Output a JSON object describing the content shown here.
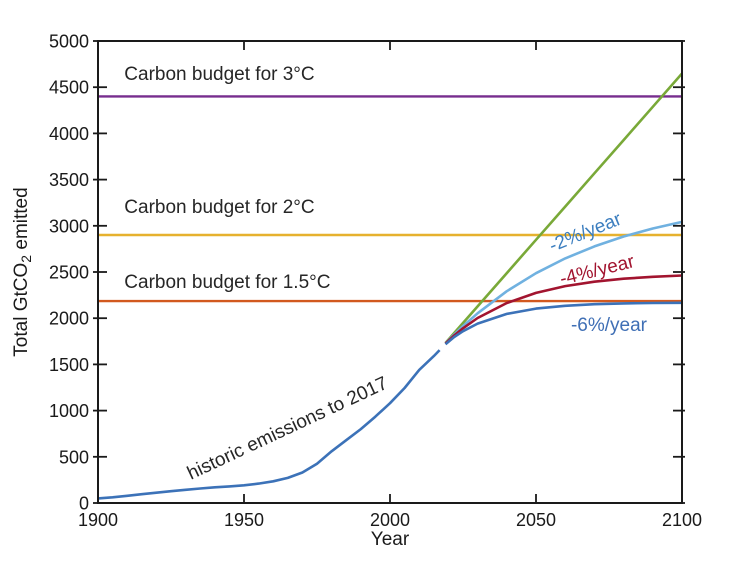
{
  "chart_data": {
    "type": "line",
    "title": "",
    "xlabel": "Year",
    "ylabel": {
      "pre": "Total GtCO",
      "sub": "2",
      "post": " emitted"
    },
    "xlim": [
      1900,
      2100
    ],
    "ylim": [
      0,
      5000
    ],
    "xticks": [
      1900,
      1950,
      2000,
      2050,
      2100
    ],
    "yticks": [
      0,
      500,
      1000,
      1500,
      2000,
      2500,
      3000,
      3500,
      4000,
      4500,
      5000
    ],
    "grid": false,
    "legend_position": "none",
    "frame_color": "#1a1a1a",
    "budget_lines": [
      {
        "name": "carbon-budget-3c",
        "value": 4400,
        "color": "#772D8E"
      },
      {
        "name": "carbon-budget-2c",
        "value": 2900,
        "color": "#E6B12E"
      },
      {
        "name": "carbon-budget-1-5c",
        "value": 2185,
        "color": "#D2591F"
      }
    ],
    "series": [
      {
        "name": "constant-emissions",
        "color": "#79A938",
        "points": [
          [
            2019,
            1732
          ],
          [
            2022,
            1840
          ],
          [
            2030,
            2128
          ],
          [
            2040,
            2488
          ],
          [
            2050,
            2848
          ],
          [
            2060,
            3208
          ],
          [
            2070,
            3568
          ],
          [
            2080,
            3928
          ],
          [
            2090,
            4288
          ],
          [
            2100,
            4648
          ]
        ]
      },
      {
        "name": "minus-2-percent-per-year",
        "color": "#70B1E0",
        "points": [
          [
            2019,
            1727
          ],
          [
            2022,
            1823
          ],
          [
            2025,
            1914
          ],
          [
            2030,
            2053
          ],
          [
            2040,
            2292
          ],
          [
            2050,
            2487
          ],
          [
            2060,
            2647
          ],
          [
            2070,
            2777
          ],
          [
            2080,
            2884
          ],
          [
            2090,
            2971
          ],
          [
            2100,
            3042
          ]
        ]
      },
      {
        "name": "minus-4-percent-per-year",
        "color": "#A2142F",
        "points": [
          [
            2019,
            1725
          ],
          [
            2022,
            1813
          ],
          [
            2025,
            1891
          ],
          [
            2030,
            2002
          ],
          [
            2040,
            2165
          ],
          [
            2050,
            2274
          ],
          [
            2060,
            2347
          ],
          [
            2070,
            2395
          ],
          [
            2080,
            2427
          ],
          [
            2090,
            2448
          ],
          [
            2100,
            2462
          ]
        ]
      },
      {
        "name": "minus-6-percent-per-year",
        "color": "#3C72B8",
        "points": [
          [
            2019,
            1719
          ],
          [
            2022,
            1796
          ],
          [
            2025,
            1859
          ],
          [
            2030,
            1942
          ],
          [
            2040,
            2047
          ],
          [
            2050,
            2104
          ],
          [
            2060,
            2134
          ],
          [
            2070,
            2151
          ],
          [
            2080,
            2160
          ],
          [
            2090,
            2164
          ],
          [
            2100,
            2167
          ]
        ]
      },
      {
        "name": "historic-emissions",
        "color": "#3C72B8",
        "points": [
          [
            1900,
            50
          ],
          [
            1905,
            62
          ],
          [
            1910,
            78
          ],
          [
            1915,
            95
          ],
          [
            1920,
            112
          ],
          [
            1925,
            128
          ],
          [
            1930,
            143
          ],
          [
            1935,
            157
          ],
          [
            1940,
            170
          ],
          [
            1945,
            180
          ],
          [
            1950,
            192
          ],
          [
            1955,
            210
          ],
          [
            1960,
            235
          ],
          [
            1965,
            272
          ],
          [
            1970,
            330
          ],
          [
            1975,
            425
          ],
          [
            1980,
            560
          ],
          [
            1985,
            680
          ],
          [
            1990,
            800
          ],
          [
            1995,
            935
          ],
          [
            2000,
            1080
          ],
          [
            2005,
            1245
          ],
          [
            2010,
            1440
          ],
          [
            2015,
            1590
          ],
          [
            2017,
            1655
          ]
        ]
      }
    ],
    "annotations": [
      {
        "name": "carbon-budget-3c-label",
        "text": "Carbon budget for 3°C",
        "x": 1909,
        "y": 4630,
        "rotate": 0,
        "anchor": "start",
        "color": "#262626"
      },
      {
        "name": "carbon-budget-2c-label",
        "text": "Carbon budget for 2°C",
        "x": 1909,
        "y": 3190,
        "rotate": 0,
        "anchor": "start",
        "color": "#262626"
      },
      {
        "name": "carbon-budget-1-5c-label",
        "text": "Carbon budget for 1.5°C",
        "x": 1909,
        "y": 2380,
        "rotate": 0,
        "anchor": "start",
        "color": "#262626"
      },
      {
        "name": "historic-emissions-label",
        "text": "historic emissions to 2017",
        "x": 1965,
        "y": 800,
        "rotate": -25,
        "anchor": "middle",
        "color": "#262626"
      },
      {
        "name": "minus-2-percent-label",
        "text": "-2%/year",
        "x": 2067,
        "y": 2920,
        "rotate": -22,
        "anchor": "middle",
        "color": "#3C7EBF"
      },
      {
        "name": "minus-4-percent-label",
        "text": "-4%/year",
        "x": 2071,
        "y": 2510,
        "rotate": -14,
        "anchor": "middle",
        "color": "#A2142F"
      },
      {
        "name": "minus-6-percent-label",
        "text": "-6%/year",
        "x": 2075,
        "y": 1915,
        "rotate": 0,
        "anchor": "middle",
        "color": "#3F6FB5"
      }
    ]
  }
}
